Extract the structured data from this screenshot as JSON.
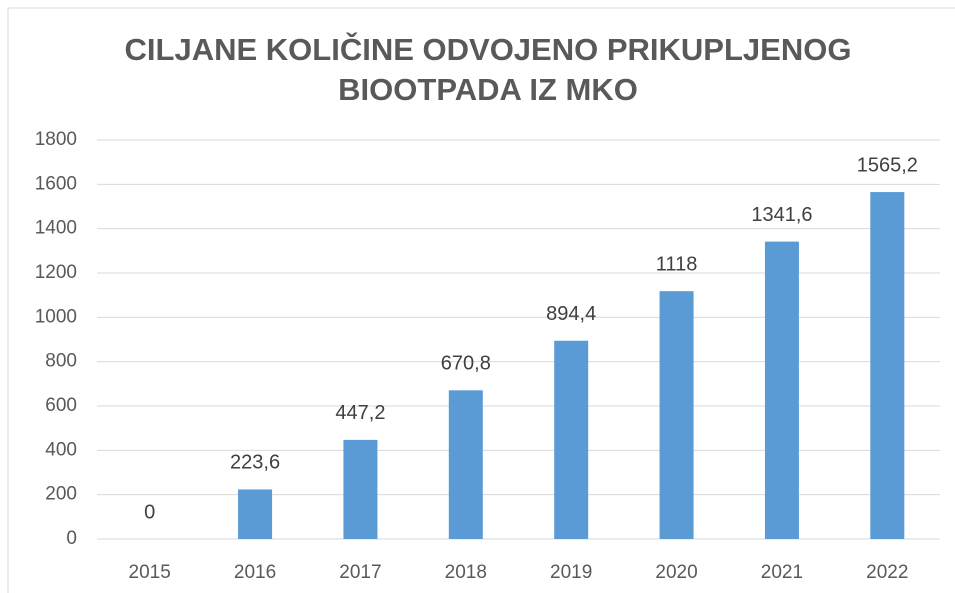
{
  "chart_data": {
    "type": "bar",
    "title": [
      "CILJANE KOLIČINE ODVOJENO PRIKUPLJENOG",
      "BIOOTPADA IZ MKO"
    ],
    "categories": [
      "2015",
      "2016",
      "2017",
      "2018",
      "2019",
      "2020",
      "2021",
      "2022"
    ],
    "values": [
      0,
      223.6,
      447.2,
      670.8,
      894.4,
      1118,
      1341.6,
      1565.2
    ],
    "value_labels": [
      "0",
      "223,6",
      "447,2",
      "670,8",
      "894,4",
      "1118",
      "1341,6",
      "1565,2"
    ],
    "color": "#5b9bd5",
    "ylim": [
      0,
      1800
    ],
    "yticks": [
      0,
      200,
      400,
      600,
      800,
      1000,
      1200,
      1400,
      1600,
      1800
    ],
    "grid": true
  }
}
